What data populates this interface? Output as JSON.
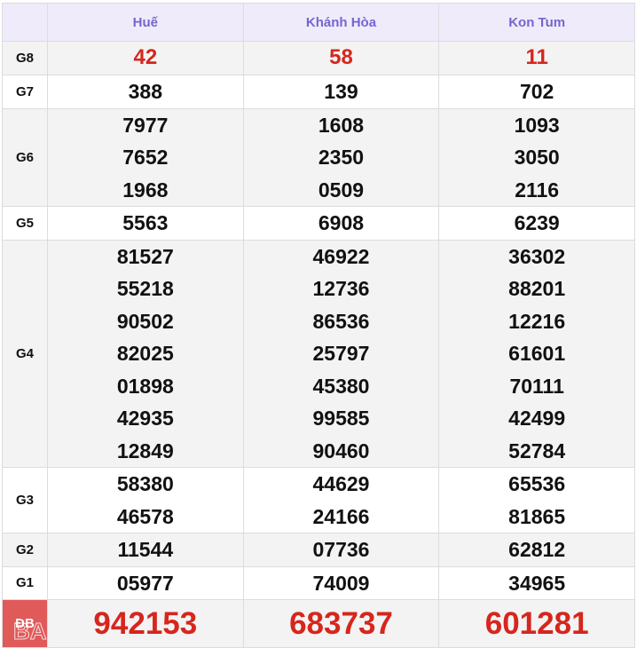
{
  "header": {
    "provinces": [
      "Huế",
      "Khánh Hòa",
      "Kon Tum"
    ]
  },
  "rows": [
    {
      "label": "G8",
      "values": [
        [
          "42"
        ],
        [
          "58"
        ],
        [
          "11"
        ]
      ]
    },
    {
      "label": "G7",
      "values": [
        [
          "388"
        ],
        [
          "139"
        ],
        [
          "702"
        ]
      ]
    },
    {
      "label": "G6",
      "values": [
        [
          "7977",
          "7652",
          "1968"
        ],
        [
          "1608",
          "2350",
          "0509"
        ],
        [
          "1093",
          "3050",
          "2116"
        ]
      ]
    },
    {
      "label": "G5",
      "values": [
        [
          "5563"
        ],
        [
          "6908"
        ],
        [
          "6239"
        ]
      ]
    },
    {
      "label": "G4",
      "values": [
        [
          "81527",
          "55218",
          "90502",
          "82025",
          "01898",
          "42935",
          "12849"
        ],
        [
          "46922",
          "12736",
          "86536",
          "25797",
          "45380",
          "99585",
          "90460"
        ],
        [
          "36302",
          "88201",
          "12216",
          "61601",
          "70111",
          "42499",
          "52784"
        ]
      ]
    },
    {
      "label": "G3",
      "values": [
        [
          "58380",
          "46578"
        ],
        [
          "44629",
          "24166"
        ],
        [
          "65536",
          "81865"
        ]
      ]
    },
    {
      "label": "G2",
      "values": [
        [
          "11544"
        ],
        [
          "07736"
        ],
        [
          "62812"
        ]
      ]
    },
    {
      "label": "G1",
      "values": [
        [
          "05977"
        ],
        [
          "74009"
        ],
        [
          "34965"
        ]
      ]
    },
    {
      "label": "ĐB",
      "values": [
        [
          "942153"
        ],
        [
          "683737"
        ],
        [
          "601281"
        ]
      ]
    }
  ],
  "watermark": "BA",
  "colors": {
    "header_text": "#7566cf",
    "prize_red": "#d6261d",
    "db_label_bg": "#e05a5a"
  }
}
